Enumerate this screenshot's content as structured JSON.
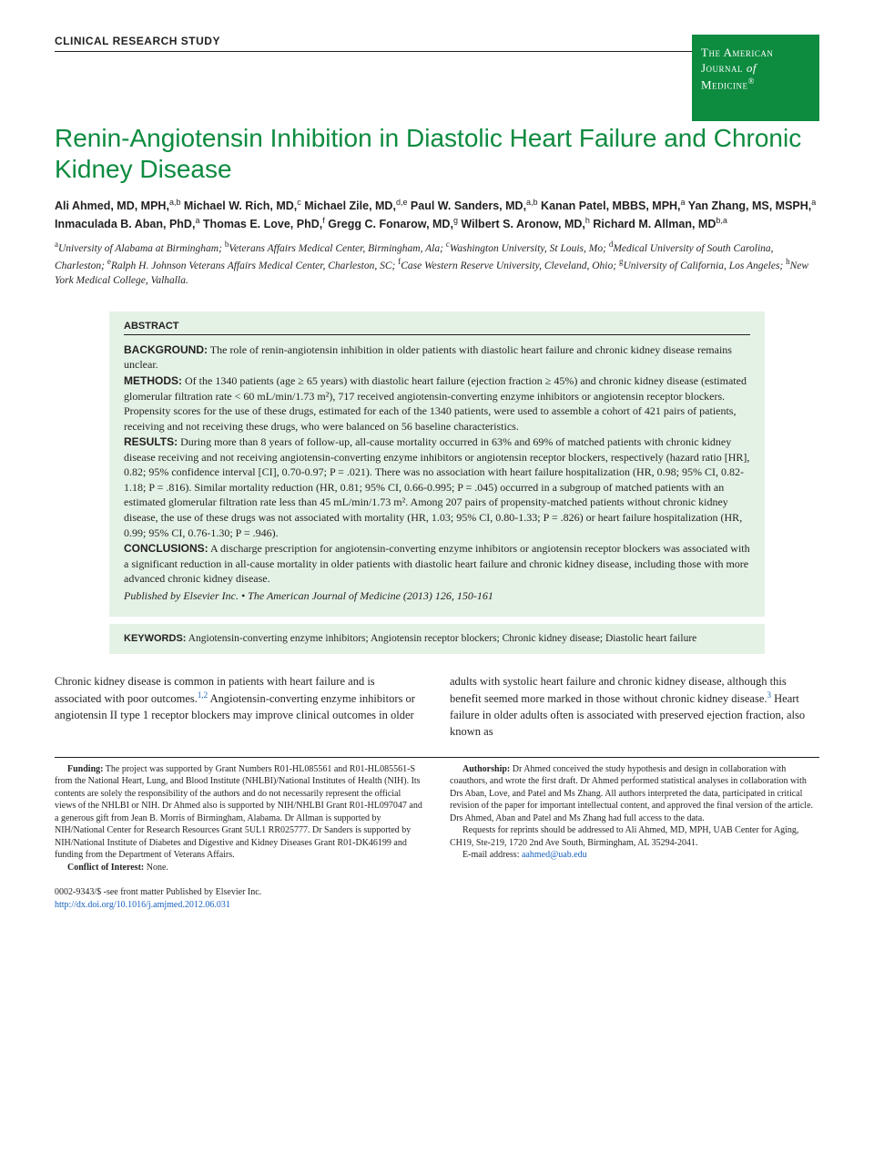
{
  "section_label": "CLINICAL RESEARCH STUDY",
  "journal_badge": {
    "line1": "The American",
    "line2_pre": "Journal",
    "line2_of": "of",
    "line3": "Medicine",
    "reg": "®"
  },
  "title": "Renin-Angiotensin Inhibition in Diastolic Heart Failure and Chronic Kidney Disease",
  "authors_html": "Ali Ahmed, MD, MPH,<sup>a,b</sup> Michael W. Rich, MD,<sup>c</sup> Michael Zile, MD,<sup>d,e</sup> Paul W. Sanders, MD,<sup>a,b</sup> Kanan Patel, MBBS, MPH,<sup>a</sup> Yan Zhang, MS, MSPH,<sup>a</sup> Inmaculada B. Aban, PhD,<sup>a</sup> Thomas E. Love, PhD,<sup>f</sup> Gregg C. Fonarow, MD,<sup>g</sup> Wilbert S. Aronow, MD,<sup>h</sup> Richard M. Allman, MD<sup>b,a</sup>",
  "affiliations_html": "<sup>a</sup>University of Alabama at Birmingham; <sup>b</sup>Veterans Affairs Medical Center, Birmingham, Ala; <sup>c</sup>Washington University, St Louis, Mo; <sup>d</sup>Medical University of South Carolina, Charleston; <sup>e</sup>Ralph H. Johnson Veterans Affairs Medical Center, Charleston, SC; <sup>f</sup>Case Western Reserve University, Cleveland, Ohio; <sup>g</sup>University of California, Los Angeles; <sup>h</sup>New York Medical College, Valhalla.",
  "abstract": {
    "header": "ABSTRACT",
    "background_label": "BACKGROUND:",
    "background": " The role of renin-angiotensin inhibition in older patients with diastolic heart failure and chronic kidney disease remains unclear.",
    "methods_label": "METHODS:",
    "methods": " Of the 1340 patients (age ≥ 65 years) with diastolic heart failure (ejection fraction ≥ 45%) and chronic kidney disease (estimated glomerular filtration rate < 60 mL/min/1.73 m²), 717 received angiotensin-converting enzyme inhibitors or angiotensin receptor blockers. Propensity scores for the use of these drugs, estimated for each of the 1340 patients, were used to assemble a cohort of 421 pairs of patients, receiving and not receiving these drugs, who were balanced on 56 baseline characteristics.",
    "results_label": "RESULTS:",
    "results": " During more than 8 years of follow-up, all-cause mortality occurred in 63% and 69% of matched patients with chronic kidney disease receiving and not receiving angiotensin-converting enzyme inhibitors or angiotensin receptor blockers, respectively (hazard ratio [HR], 0.82; 95% confidence interval [CI], 0.70-0.97; P = .021). There was no association with heart failure hospitalization (HR, 0.98; 95% CI, 0.82-1.18; P = .816). Similar mortality reduction (HR, 0.81; 95% CI, 0.66-0.995; P = .045) occurred in a subgroup of matched patients with an estimated glomerular filtration rate less than 45 mL/min/1.73 m². Among 207 pairs of propensity-matched patients without chronic kidney disease, the use of these drugs was not associated with mortality (HR, 1.03; 95% CI, 0.80-1.33; P = .826) or heart failure hospitalization (HR, 0.99; 95% CI, 0.76-1.30; P = .946).",
    "conclusions_label": "CONCLUSIONS:",
    "conclusions": " A discharge prescription for angiotensin-converting enzyme inhibitors or angiotensin receptor blockers was associated with a significant reduction in all-cause mortality in older patients with diastolic heart failure and chronic kidney disease, including those with more advanced chronic kidney disease.",
    "pubinfo": "Published by Elsevier Inc. • The American Journal of Medicine (2013) 126, 150-161"
  },
  "keywords": {
    "label": "KEYWORDS:",
    "text": " Angiotensin-converting enzyme inhibitors; Angiotensin receptor blockers; Chronic kidney disease; Diastolic heart failure"
  },
  "body": {
    "left": "Chronic kidney disease is common in patients with heart failure and is associated with poor outcomes.",
    "left_ref": "1,2",
    "left_cont": " Angiotensin-converting enzyme inhibitors or angiotensin II type 1 receptor blockers may improve clinical outcomes in older",
    "right": "adults with systolic heart failure and chronic kidney disease, although this benefit seemed more marked in those without chronic kidney disease.",
    "right_ref": "3",
    "right_cont": " Heart failure in older adults often is associated with preserved ejection fraction, also known as"
  },
  "footnotes": {
    "funding_label": "Funding:",
    "funding": " The project was supported by Grant Numbers R01-HL085561 and R01-HL085561-S from the National Heart, Lung, and Blood Institute (NHLBI)/National Institutes of Health (NIH). Its contents are solely the responsibility of the authors and do not necessarily represent the official views of the NHLBI or NIH. Dr Ahmed also is supported by NIH/NHLBI Grant R01-HL097047 and a generous gift from Jean B. Morris of Birmingham, Alabama. Dr Allman is supported by NIH/National Center for Research Resources Grant 5UL1 RR025777. Dr Sanders is supported by NIH/National Institute of Diabetes and Digestive and Kidney Diseases Grant R01-DK46199 and funding from the Department of Veterans Affairs.",
    "coi_label": "Conflict of Interest:",
    "coi": " None.",
    "authorship_label": "Authorship:",
    "authorship": " Dr Ahmed conceived the study hypothesis and design in collaboration with coauthors, and wrote the first draft. Dr Ahmed performed statistical analyses in collaboration with Drs Aban, Love, and Patel and Ms Zhang. All authors interpreted the data, participated in critical revision of the paper for important intellectual content, and approved the final version of the article. Drs Ahmed, Aban and Patel and Ms Zhang had full access to the data.",
    "reprints": "Requests for reprints should be addressed to Ali Ahmed, MD, MPH, UAB Center for Aging, CH19, Ste-219, 1720 2nd Ave South, Birmingham, AL 35294-2041.",
    "email_label": "E-mail address: ",
    "email": "aahmed@uab.edu"
  },
  "bottom": {
    "issn": "0002-9343/$ -see front matter Published by Elsevier Inc.",
    "doi": "http://dx.doi.org/10.1016/j.amjmed.2012.06.031"
  },
  "colors": {
    "brand_green": "#0d8b3f",
    "abstract_bg": "#e4f2e5",
    "link_blue": "#1560bd",
    "text": "#231f20"
  }
}
